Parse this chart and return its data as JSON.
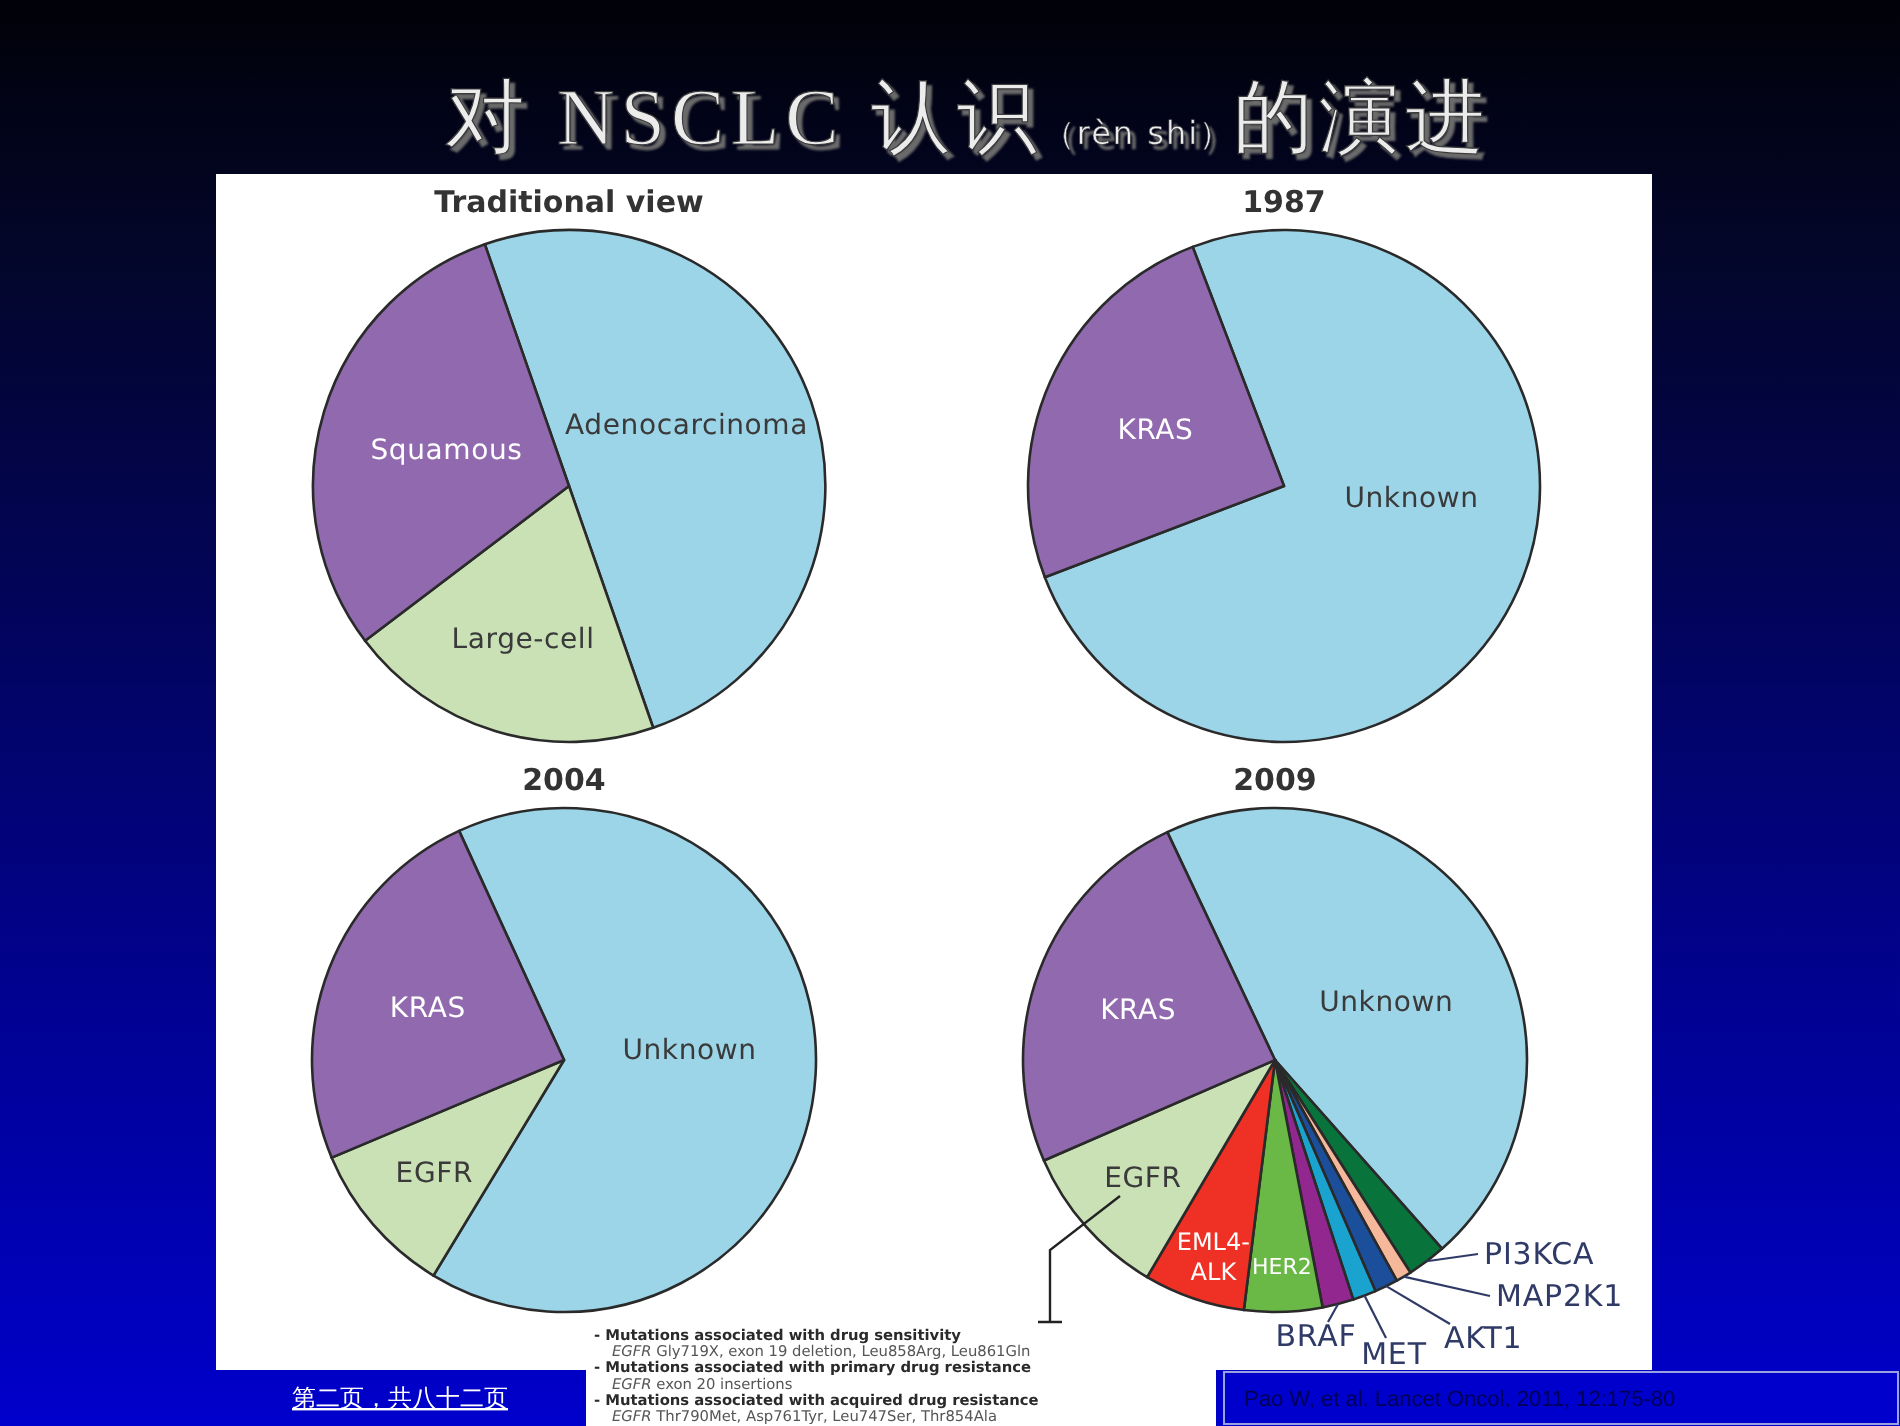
{
  "chart_data": [
    {
      "type": "other",
      "title": "对 NSCLC 认识（rèn shi）的演进"
    },
    {
      "type": "pie",
      "title": "Traditional view",
      "categories": [
        "Adenocarcinoma",
        "Large-cell",
        "Squamous"
      ],
      "values": [
        50,
        20,
        30
      ],
      "colors": [
        "#9dd5e8",
        "#c9e1b5",
        "#9069ae"
      ]
    },
    {
      "type": "pie",
      "title": "1987",
      "categories": [
        "Unknown",
        "KRAS"
      ],
      "values": [
        75,
        25
      ],
      "colors": [
        "#9dd5e8",
        "#9069ae"
      ]
    },
    {
      "type": "pie",
      "title": "2004",
      "categories": [
        "Unknown",
        "EGFR",
        "KRAS"
      ],
      "values": [
        65.5,
        10,
        24.5
      ],
      "colors": [
        "#9dd5e8",
        "#c9e1b5",
        "#9069ae"
      ]
    },
    {
      "type": "pie",
      "title": "2009",
      "categories": [
        "Unknown",
        "PI3KCA",
        "MAP2K1",
        "AKT1",
        "MET",
        "BRAF",
        "HER2",
        "EML4-ALK",
        "EGFR",
        "KRAS"
      ],
      "values": [
        45.5,
        2.5,
        1,
        1.5,
        1.5,
        2,
        5,
        6.5,
        10,
        24.5
      ],
      "colors": [
        "#9dd5e8",
        "#08743c",
        "#f5b89a",
        "#1b4f9c",
        "#1ba3d0",
        "#92278f",
        "#6ab845",
        "#ee3124",
        "#c9e1b5",
        "#9069ae"
      ]
    },
    {
      "type": "other",
      "annotations": [
        "- Mutations associated with drug sensitivity",
        "EGFR Gly719X, exon 19 deletion, Leu858Arg, Leu861Gln",
        "- Mutations associated with primary drug resistance",
        "EGFR exon 20 insertions",
        "- Mutations associated with acquired drug resistance",
        "EGFR Thr790Met, Asp761Tyr, Leu747Ser, Thr854Ala",
        "第二页，共八十二页",
        "Pao W, et al. Lancet Oncol, 2011, 12:175-80"
      ]
    }
  ]
}
